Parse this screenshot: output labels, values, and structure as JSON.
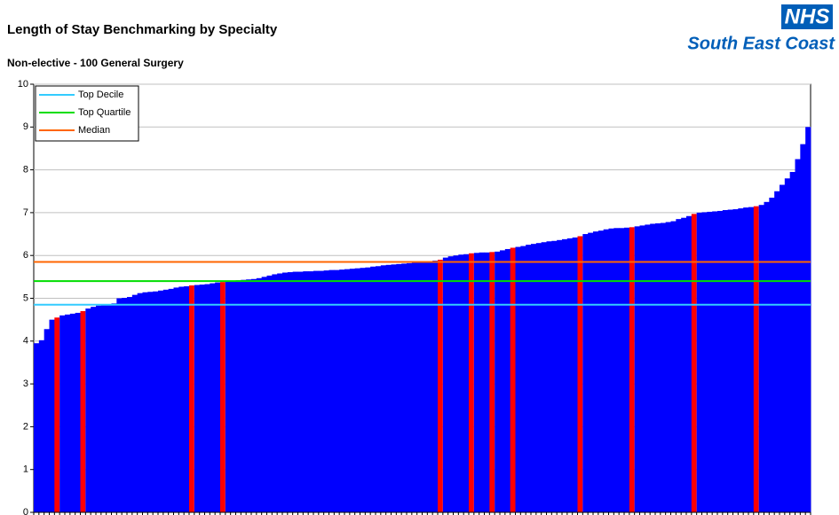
{
  "header": {
    "logo_mark": "NHS",
    "logo_text": "South East Coast"
  },
  "chart_data": {
    "type": "bar",
    "title": "Length of Stay Benchmarking by Specialty",
    "subtitle": "Non-elective - 100 General Surgery",
    "ylim": [
      0,
      10
    ],
    "yticks": [
      0,
      1,
      2,
      3,
      4,
      5,
      6,
      7,
      8,
      9,
      10
    ],
    "grid": true,
    "color": "#0000ff",
    "highlight_color": "#ff0000",
    "highlight_indices": [
      4,
      9,
      30,
      36,
      78,
      84,
      88,
      92,
      105,
      115,
      127,
      139
    ],
    "values": [
      3.95,
      4.02,
      4.28,
      4.5,
      4.55,
      4.6,
      4.62,
      4.64,
      4.66,
      4.7,
      4.76,
      4.8,
      4.83,
      4.85,
      4.86,
      4.88,
      5.0,
      5.01,
      5.03,
      5.08,
      5.12,
      5.14,
      5.15,
      5.16,
      5.18,
      5.2,
      5.22,
      5.25,
      5.27,
      5.28,
      5.3,
      5.31,
      5.32,
      5.33,
      5.35,
      5.37,
      5.38,
      5.4,
      5.41,
      5.42,
      5.43,
      5.44,
      5.45,
      5.47,
      5.5,
      5.53,
      5.56,
      5.58,
      5.6,
      5.61,
      5.62,
      5.62,
      5.63,
      5.63,
      5.64,
      5.64,
      5.65,
      5.66,
      5.66,
      5.67,
      5.68,
      5.69,
      5.7,
      5.71,
      5.72,
      5.74,
      5.75,
      5.77,
      5.78,
      5.79,
      5.8,
      5.81,
      5.82,
      5.83,
      5.84,
      5.85,
      5.86,
      5.88,
      5.9,
      5.95,
      5.98,
      6.0,
      6.02,
      6.03,
      6.05,
      6.06,
      6.07,
      6.07,
      6.08,
      6.09,
      6.12,
      6.15,
      6.18,
      6.2,
      6.22,
      6.25,
      6.27,
      6.29,
      6.31,
      6.33,
      6.34,
      6.36,
      6.38,
      6.4,
      6.42,
      6.45,
      6.5,
      6.53,
      6.56,
      6.58,
      6.61,
      6.63,
      6.64,
      6.64,
      6.65,
      6.66,
      6.68,
      6.7,
      6.72,
      6.74,
      6.75,
      6.76,
      6.78,
      6.8,
      6.85,
      6.88,
      6.92,
      6.97,
      7.0,
      7.01,
      7.02,
      7.03,
      7.04,
      7.06,
      7.07,
      7.08,
      7.1,
      7.12,
      7.13,
      7.15,
      7.18,
      7.25,
      7.35,
      7.5,
      7.65,
      7.8,
      7.95,
      8.25,
      8.6,
      9.0
    ],
    "reference_lines": [
      {
        "name": "Top Decile",
        "color": "#33ccff",
        "value": 4.85
      },
      {
        "name": "Top Quartile",
        "color": "#00dd00",
        "value": 5.4
      },
      {
        "name": "Median",
        "color": "#ff6600",
        "value": 5.85
      }
    ],
    "legend": "top-left"
  }
}
